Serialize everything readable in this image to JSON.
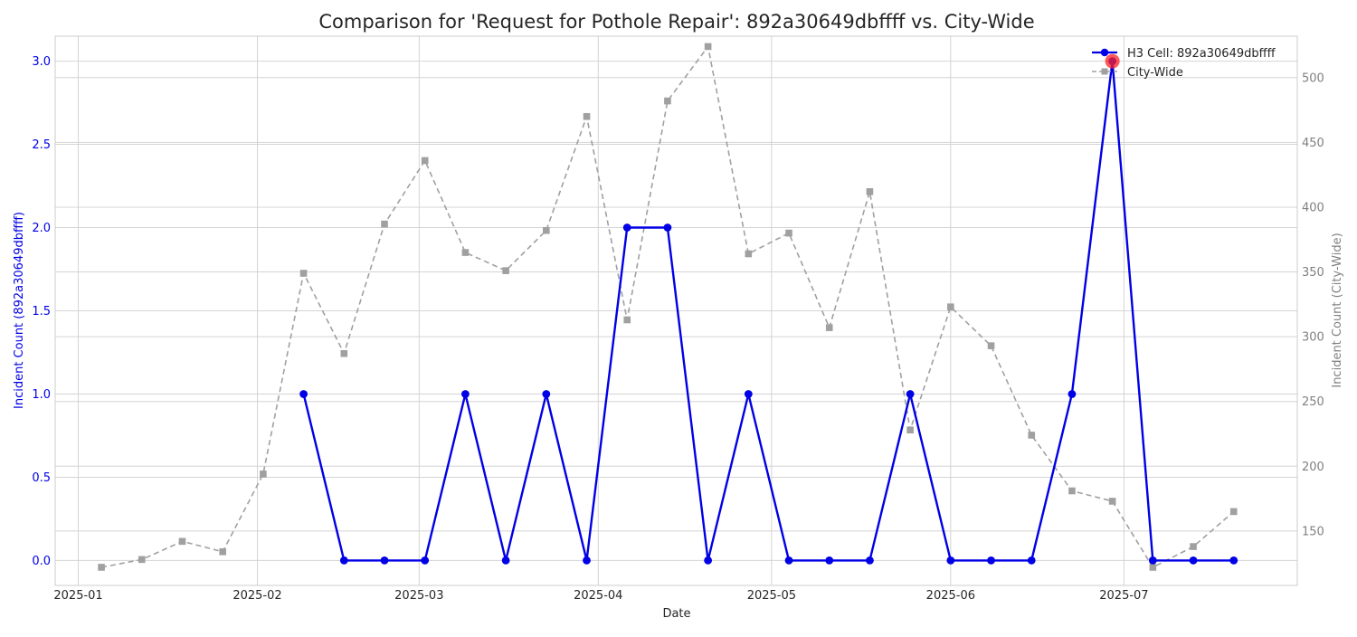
{
  "chart_data": {
    "type": "line",
    "title": "Comparison for 'Request for Pothole Repair': 892a30649dbffff vs. City-Wide",
    "xlabel": "Date",
    "ylabel_left": "Incident Count (892a30649dbffff)",
    "ylabel_right": "Incident Count (City-Wide)",
    "x_ticks": [
      "2025-01",
      "2025-02",
      "2025-03",
      "2025-04",
      "2025-05",
      "2025-06",
      "2025-07"
    ],
    "x_range": [
      "2024-12-28",
      "2025-07-31"
    ],
    "ylim_left": [
      -0.15,
      3.15
    ],
    "ylim_right": [
      108,
      532
    ],
    "y_ticks_left": [
      "0.0",
      "0.5",
      "1.0",
      "1.5",
      "2.0",
      "2.5",
      "3.0"
    ],
    "y_ticks_right": [
      "150",
      "200",
      "250",
      "300",
      "350",
      "400",
      "450",
      "500"
    ],
    "grid": true,
    "legend_position": "top-right",
    "series": [
      {
        "name": "H3 Cell: 892a30649dbffff",
        "axis": "left",
        "color": "#0000e6",
        "marker": "circle",
        "dash": false,
        "points": [
          {
            "x": "2025-02-09",
            "y": 1
          },
          {
            "x": "2025-02-16",
            "y": 0
          },
          {
            "x": "2025-02-23",
            "y": 0
          },
          {
            "x": "2025-03-02",
            "y": 0
          },
          {
            "x": "2025-03-09",
            "y": 1
          },
          {
            "x": "2025-03-16",
            "y": 0
          },
          {
            "x": "2025-03-23",
            "y": 1
          },
          {
            "x": "2025-03-30",
            "y": 0
          },
          {
            "x": "2025-04-06",
            "y": 2
          },
          {
            "x": "2025-04-13",
            "y": 2
          },
          {
            "x": "2025-04-20",
            "y": 0
          },
          {
            "x": "2025-04-27",
            "y": 1
          },
          {
            "x": "2025-05-04",
            "y": 0
          },
          {
            "x": "2025-05-11",
            "y": 0
          },
          {
            "x": "2025-05-18",
            "y": 0
          },
          {
            "x": "2025-05-25",
            "y": 1
          },
          {
            "x": "2025-06-01",
            "y": 0
          },
          {
            "x": "2025-06-08",
            "y": 0
          },
          {
            "x": "2025-06-15",
            "y": 0
          },
          {
            "x": "2025-06-22",
            "y": 1
          },
          {
            "x": "2025-06-29",
            "y": 3
          },
          {
            "x": "2025-07-06",
            "y": 0
          },
          {
            "x": "2025-07-13",
            "y": 0
          },
          {
            "x": "2025-07-20",
            "y": 0
          }
        ]
      },
      {
        "name": "City-Wide",
        "axis": "right",
        "color": "#a0a0a0",
        "marker": "square",
        "dash": true,
        "points": [
          {
            "x": "2025-01-05",
            "y": 122
          },
          {
            "x": "2025-01-12",
            "y": 128
          },
          {
            "x": "2025-01-19",
            "y": 142
          },
          {
            "x": "2025-01-26",
            "y": 134
          },
          {
            "x": "2025-02-02",
            "y": 194
          },
          {
            "x": "2025-02-09",
            "y": 349
          },
          {
            "x": "2025-02-16",
            "y": 287
          },
          {
            "x": "2025-02-23",
            "y": 387
          },
          {
            "x": "2025-03-02",
            "y": 436
          },
          {
            "x": "2025-03-09",
            "y": 365
          },
          {
            "x": "2025-03-16",
            "y": 351
          },
          {
            "x": "2025-03-23",
            "y": 382
          },
          {
            "x": "2025-03-30",
            "y": 470
          },
          {
            "x": "2025-04-06",
            "y": 313
          },
          {
            "x": "2025-04-13",
            "y": 482
          },
          {
            "x": "2025-04-20",
            "y": 524
          },
          {
            "x": "2025-04-27",
            "y": 364
          },
          {
            "x": "2025-05-04",
            "y": 380
          },
          {
            "x": "2025-05-11",
            "y": 307
          },
          {
            "x": "2025-05-18",
            "y": 412
          },
          {
            "x": "2025-05-25",
            "y": 228
          },
          {
            "x": "2025-06-01",
            "y": 323
          },
          {
            "x": "2025-06-08",
            "y": 293
          },
          {
            "x": "2025-06-15",
            "y": 224
          },
          {
            "x": "2025-06-22",
            "y": 181
          },
          {
            "x": "2025-06-29",
            "y": 173
          },
          {
            "x": "2025-07-06",
            "y": 122
          },
          {
            "x": "2025-07-13",
            "y": 138
          },
          {
            "x": "2025-07-20",
            "y": 165
          }
        ]
      }
    ],
    "highlight": {
      "x": "2025-06-29",
      "y": 3,
      "axis": "left",
      "color": "#ff2020"
    }
  }
}
